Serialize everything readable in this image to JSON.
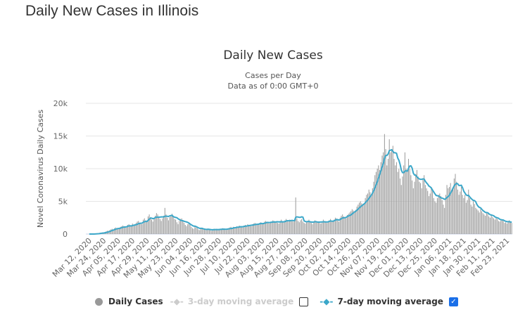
{
  "page_title": "Daily New Cases in Illinois",
  "chart_data": {
    "type": "bar",
    "title": "Daily New Cases",
    "subtitle": [
      "Cases per Day",
      "Data as of 0:00 GMT+0"
    ],
    "ylabel": "Novel Coronavirus Daily Cases",
    "xlabel": "",
    "ylim": [
      0,
      20000
    ],
    "yticks": [
      "0",
      "5k",
      "10k",
      "15k",
      "20k"
    ],
    "ytick_values": [
      0,
      5000,
      10000,
      15000,
      20000
    ],
    "grid": true,
    "legend_placement": "bottom",
    "x_labels": [
      "Mar 12, 2020",
      "Mar 24, 2020",
      "Apr 05, 2020",
      "Apr 17, 2020",
      "Apr 29, 2020",
      "May 11, 2020",
      "May 23, 2020",
      "Jun 04, 2020",
      "Jun 16, 2020",
      "Jun 28, 2020",
      "Jul 10, 2020",
      "Jul 22, 2020",
      "Aug 03, 2020",
      "Aug 15, 2020",
      "Aug 27, 2020",
      "Sep 08, 2020",
      "Sep 20, 2020",
      "Oct 02, 2020",
      "Oct 14, 2020",
      "Oct 26, 2020",
      "Nov 07, 2020",
      "Nov 19, 2020",
      "Dec 01, 2020",
      "Dec 13, 2020",
      "Dec 25, 2020",
      "Jan 06, 2021",
      "Jan 18, 2021",
      "Jan 30, 2021",
      "Feb 11, 2021",
      "Feb 23, 2021"
    ],
    "x_label_step_days": 12,
    "start_date": "Mar 12, 2020",
    "daily_cases_hundreds": [
      0,
      0,
      0,
      0,
      0,
      1,
      1,
      1,
      1,
      2,
      2,
      2,
      2,
      3,
      4,
      5,
      5,
      6,
      7,
      8,
      7,
      9,
      10,
      9,
      9,
      8,
      11,
      12,
      13,
      12,
      11,
      10,
      14,
      15,
      13,
      12,
      16,
      14,
      13,
      17,
      19,
      20,
      16,
      17,
      15,
      22,
      24,
      21,
      20,
      27,
      30,
      26,
      22,
      19,
      24,
      28,
      32,
      30,
      26,
      23,
      20,
      24,
      28,
      40,
      30,
      25,
      21,
      26,
      28,
      31,
      27,
      23,
      22,
      18,
      15,
      20,
      23,
      24,
      20,
      17,
      14,
      12,
      15,
      16,
      14,
      11,
      9,
      8,
      12,
      10,
      9,
      7,
      6,
      9,
      8,
      7,
      7,
      6,
      7,
      8,
      7,
      6,
      5,
      7,
      8,
      7,
      8,
      7,
      6,
      7,
      8,
      9,
      8,
      7,
      6,
      8,
      9,
      10,
      11,
      9,
      11,
      10,
      9,
      12,
      11,
      13,
      12,
      11,
      10,
      13,
      14,
      13,
      15,
      14,
      13,
      12,
      15,
      16,
      17,
      16,
      15,
      14,
      17,
      18,
      15,
      17,
      19,
      20,
      18,
      17,
      16,
      18,
      19,
      21,
      20,
      18,
      19,
      17,
      16,
      20,
      22,
      19,
      18,
      21,
      23,
      20,
      19,
      22,
      21,
      20,
      19,
      22,
      56,
      24,
      20,
      18,
      21,
      23,
      19,
      17,
      16,
      18,
      20,
      22,
      19,
      17,
      15,
      18,
      21,
      20,
      19,
      18,
      17,
      16,
      19,
      22,
      20,
      18,
      17,
      19,
      21,
      23,
      20,
      19,
      22,
      25,
      24,
      21,
      19,
      25,
      28,
      30,
      27,
      25,
      24,
      29,
      31,
      33,
      35,
      38,
      36,
      34,
      37,
      42,
      45,
      48,
      50,
      47,
      43,
      47,
      55,
      60,
      62,
      68,
      64,
      60,
      70,
      80,
      90,
      95,
      100,
      105,
      98,
      110,
      120,
      125,
      153,
      130,
      105,
      115,
      145,
      125,
      130,
      135,
      115,
      105,
      110,
      95,
      100,
      85,
      75,
      88,
      105,
      125,
      100,
      95,
      115,
      100,
      90,
      82,
      70,
      80,
      92,
      98,
      88,
      80,
      78,
      70,
      85,
      90,
      75,
      70,
      66,
      58,
      62,
      72,
      68,
      55,
      50,
      48,
      55,
      60,
      62,
      58,
      52,
      45,
      40,
      60,
      75,
      70,
      72,
      78,
      65,
      70,
      85,
      92,
      80,
      68,
      60,
      65,
      72,
      60,
      55,
      60,
      48,
      52,
      68,
      55,
      45,
      42,
      50,
      46,
      40,
      38,
      36,
      33,
      38,
      35,
      32,
      30,
      28,
      34,
      31,
      27,
      25,
      29,
      26,
      24,
      22,
      25,
      23,
      20,
      19,
      21,
      22,
      20,
      17,
      18,
      16,
      19,
      21,
      18,
      17
    ],
    "series": [
      {
        "name": "Daily Cases",
        "color": "#999999",
        "visible": true
      },
      {
        "name": "3-day moving average",
        "color": "#cccccc",
        "visible": false
      },
      {
        "name": "7-day moving average",
        "color": "#3ba7c9",
        "visible": true
      }
    ]
  }
}
